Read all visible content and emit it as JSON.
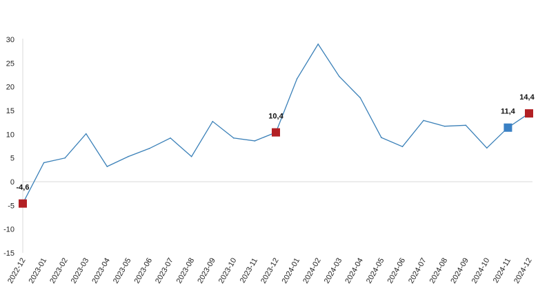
{
  "chart_data": {
    "type": "line",
    "title": "",
    "xlabel": "",
    "ylabel": "",
    "ylim": [
      -15,
      30
    ],
    "y_ticks": [
      "-15",
      "-10",
      "-5",
      "0",
      "5",
      "10",
      "15",
      "20",
      "25",
      "30"
    ],
    "y_tick_values": [
      -15,
      -10,
      -5,
      0,
      5,
      10,
      15,
      20,
      25,
      30
    ],
    "grid": "zero line only",
    "categories": [
      "2022-12",
      "2023-01",
      "2023-02",
      "2023-03",
      "2023-04",
      "2023-05",
      "2023-06",
      "2023-07",
      "2023-08",
      "2023-09",
      "2023-10",
      "2023-11",
      "2023-12",
      "2024-01",
      "2024-02",
      "2024-03",
      "2024-04",
      "2024-05",
      "2024-06",
      "2024-07",
      "2024-08",
      "2024-09",
      "2024-10",
      "2024-11",
      "2024-12"
    ],
    "series": [
      {
        "values": [
          -4.6,
          4.0,
          5.0,
          10.1,
          3.2,
          5.3,
          7.0,
          9.2,
          5.3,
          12.7,
          9.2,
          8.6,
          10.4,
          21.7,
          29.0,
          22.2,
          17.7,
          9.3,
          7.4,
          12.9,
          11.7,
          11.9,
          7.1,
          11.4,
          14.4
        ],
        "color": "#3a80b8"
      }
    ],
    "highlights": [
      {
        "category": "2022-12",
        "value": -4.6,
        "label": "-4,6",
        "color": "#b22024"
      },
      {
        "category": "2023-12",
        "value": 10.4,
        "label": "10,4",
        "color": "#b22024"
      },
      {
        "category": "2024-11",
        "value": 11.4,
        "label": "11,4",
        "color": "#3a80c4"
      },
      {
        "category": "2024-12",
        "value": 14.4,
        "label": "14,4",
        "color": "#b22024"
      }
    ]
  }
}
